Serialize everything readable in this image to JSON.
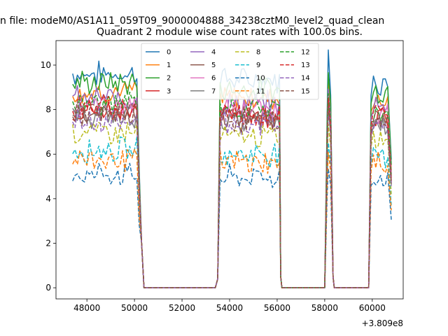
{
  "chart_data": {
    "type": "line",
    "suptitle": "n file: modeM0/AS1A11_059T09_9000004888_34238cztM0_level2_quad_clean",
    "title": "Quadrant 2 module wise count rates with 100.0s bins.",
    "xlabel": "",
    "ylabel": "",
    "x_offset_label": "+3.809e8",
    "xlim": [
      46700,
      61300
    ],
    "ylim": [
      -0.5,
      11.1
    ],
    "x_ticks": [
      48000,
      50000,
      52000,
      54000,
      56000,
      58000,
      60000
    ],
    "x_tick_labels": [
      "48000",
      "50000",
      "52000",
      "54000",
      "56000",
      "58000",
      "60000"
    ],
    "y_ticks": [
      0,
      2,
      4,
      6,
      8,
      10
    ],
    "y_tick_labels": [
      "0",
      "2",
      "4",
      "6",
      "8",
      "10"
    ],
    "grid": false,
    "legend_placement": "top-center",
    "legend_columns": 4,
    "segments": [
      {
        "on_start": 47400,
        "on_end": 50100,
        "off_end": 50400
      },
      {
        "ramp_start": 53400,
        "on_start": 53600,
        "on_end": 56100,
        "off_end": 56200
      },
      {
        "ramp_start": 58050,
        "on_start": 58150,
        "on_end": 58250,
        "off_end": 58400
      },
      {
        "ramp_start": 59850,
        "on_start": 59950,
        "on_end": 60800,
        "off_end": 60800
      }
    ],
    "series": [
      {
        "name": "0",
        "color": "#1f77b4",
        "dash": "solid",
        "level": 9.6
      },
      {
        "name": "1",
        "color": "#ff7f0e",
        "dash": "solid",
        "level": 8.8
      },
      {
        "name": "2",
        "color": "#2ca02c",
        "dash": "solid",
        "level": 9.2
      },
      {
        "name": "3",
        "color": "#d62728",
        "dash": "solid",
        "level": 8.0
      },
      {
        "name": "4",
        "color": "#9467bd",
        "dash": "solid",
        "level": 8.5
      },
      {
        "name": "5",
        "color": "#8c564b",
        "dash": "solid",
        "level": 7.9
      },
      {
        "name": "6",
        "color": "#e377c2",
        "dash": "solid",
        "level": 8.2
      },
      {
        "name": "7",
        "color": "#7f7f7f",
        "dash": "solid",
        "level": 7.7
      },
      {
        "name": "8",
        "color": "#bcbd22",
        "dash": "dashed",
        "level": 7.0
      },
      {
        "name": "9",
        "color": "#17becf",
        "dash": "dashed",
        "level": 6.2
      },
      {
        "name": "10",
        "color": "#1f77b4",
        "dash": "dashed",
        "level": 5.1
      },
      {
        "name": "11",
        "color": "#ff7f0e",
        "dash": "dashed",
        "level": 5.8
      },
      {
        "name": "12",
        "color": "#2ca02c",
        "dash": "dashed",
        "level": 8.3
      },
      {
        "name": "13",
        "color": "#d62728",
        "dash": "dashed",
        "level": 8.1
      },
      {
        "name": "14",
        "color": "#9467bd",
        "dash": "dashed",
        "level": 7.6
      },
      {
        "name": "15",
        "color": "#8c564b",
        "dash": "dashed",
        "level": 7.8
      }
    ]
  }
}
